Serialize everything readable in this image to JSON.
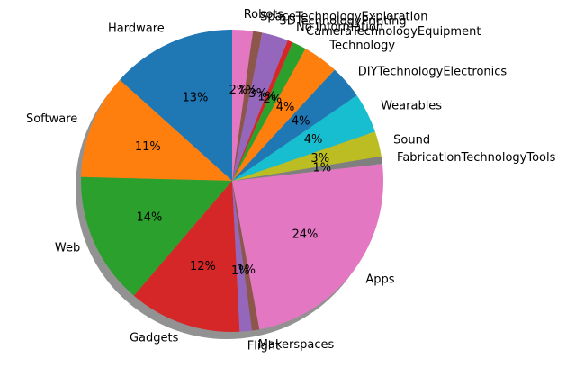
{
  "chart_data": {
    "type": "pie",
    "title": "",
    "start_angle_deg": 90,
    "direction": "counterclockwise",
    "shadow": true,
    "slices": [
      {
        "label": "Hardware",
        "pct": "13%",
        "value": 13.4,
        "color": "#1f77b4"
      },
      {
        "label": "Software",
        "pct": "11%",
        "value": 11.3,
        "color": "#ff7f0e"
      },
      {
        "label": "Web",
        "pct": "14%",
        "value": 14.2,
        "color": "#2ca02c"
      },
      {
        "label": "Gadgets",
        "pct": "12%",
        "value": 12.1,
        "color": "#d62728"
      },
      {
        "label": "Flight",
        "pct": "1%",
        "value": 1.3,
        "color": "#9467bd"
      },
      {
        "label": "Makerspaces",
        "pct": "1%",
        "value": 0.8,
        "color": "#8c564b"
      },
      {
        "label": "Apps",
        "pct": "24%",
        "value": 24.0,
        "color": "#e377c2"
      },
      {
        "label": "FabricationTechnologyTools",
        "pct": "1%",
        "value": 0.8,
        "color": "#7f7f7f"
      },
      {
        "label": "Sound",
        "pct": "3%",
        "value": 2.7,
        "color": "#bcbd22"
      },
      {
        "label": "Wearables",
        "pct": "4%",
        "value": 4.3,
        "color": "#17becf"
      },
      {
        "label": "DIYTechnologyElectronics",
        "pct": "4%",
        "value": 3.6,
        "color": "#1f77b4"
      },
      {
        "label": "Technology",
        "pct": "4%",
        "value": 3.8,
        "color": "#ff7f0e"
      },
      {
        "label": "CameraTechnologyEquipment",
        "pct": "2%",
        "value": 1.5,
        "color": "#2ca02c"
      },
      {
        "label": "No Information",
        "pct": "1%",
        "value": 0.6,
        "color": "#d62728"
      },
      {
        "label": "3DTechnologyPrinting",
        "pct": "3%",
        "value": 2.8,
        "color": "#9467bd"
      },
      {
        "label": "SpaceTechnologyExploration",
        "pct": "1%",
        "value": 1.0,
        "color": "#8c564b"
      },
      {
        "label": "Robots",
        "pct": "2%",
        "value": 2.2,
        "color": "#e377c2"
      }
    ]
  }
}
